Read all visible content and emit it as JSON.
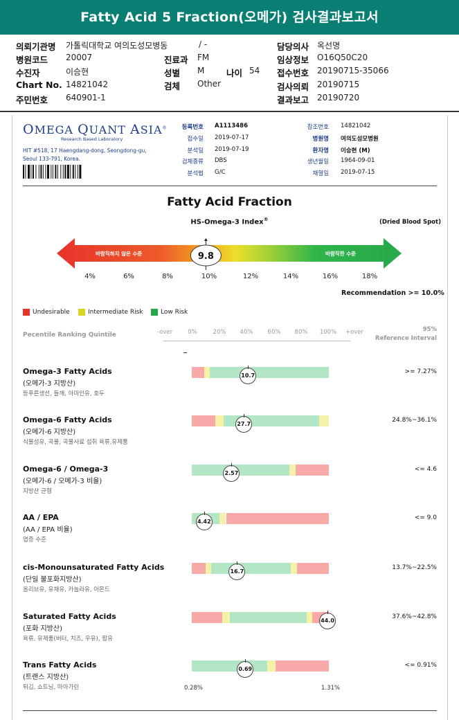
{
  "title": "Fatty Acid 5 Fraction(오메가) 검사결과보고서",
  "header": {
    "institution_label": "의뢰기관명",
    "institution": "가톨릭대학교 여의도성모병동",
    "dept_label_blank": "/ -",
    "doctor_label": "담당의사",
    "doctor": "옥선명",
    "hospital_code_label": "병원코드",
    "hospital_code": "20007",
    "dept_label": "진료과",
    "dept": "FM",
    "clinical_label": "임상정보",
    "clinical": "O16Q50C20",
    "patient_label": "수진자",
    "patient": "이승현",
    "sex_label": "성별",
    "sex": "M",
    "age_label": "나이",
    "age": "54",
    "receipt_label": "접수번호",
    "receipt": "20190715-35066",
    "chart_label": "Chart No.",
    "chart": "14821042",
    "specimen_label": "검체",
    "specimen": "Other",
    "request_date_label": "검사의뢰",
    "request_date": "20190715",
    "id_label": "주민번호",
    "id": "640901-1",
    "report_date_label": "결과보고",
    "report_date": "20190720"
  },
  "lab": {
    "logo_word1_cap": "O",
    "logo_word1": "MEGA",
    "logo_word2_cap": "Q",
    "logo_word2": "UANT",
    "logo_word3_cap": "A",
    "logo_word3": "SIA",
    "logo_mark": "®",
    "sublabel": "Research Based Laboratory",
    "address": "HIT #518, 17 Haengdang-dong, Seongdong-gu, Seoul 133-791, Korea."
  },
  "meta": {
    "reg_no_label": "등록번호",
    "reg_no": "A1113486",
    "received_label": "접수일",
    "received": "2019-07-17",
    "analyzed_label": "분석일",
    "analyzed": "2019-07-19",
    "specimen_type_label": "검체종류",
    "specimen_type": "DBS",
    "method_label": "분석법",
    "method": "G/C",
    "ref_no_label": "참조번호",
    "ref_no": "14821042",
    "hospital_label": "병원명",
    "hospital": "여의도성모병원",
    "patient_label": "환자명",
    "patient": "이승현 (M)",
    "dob_label": "생년월일",
    "dob": "1964-09-01",
    "collected_label": "채혈일",
    "collected": "2019-07-15"
  },
  "index": {
    "section_title": "Fatty Acid Fraction",
    "name": "HS-Omega-3 Index",
    "name_mark": "®",
    "sample_type": "(Dried Blood Spot)",
    "undesirable_label": "바람직하지 않은 수준",
    "desirable_label": "바람직한 수준",
    "value": 9.8,
    "value_text": "9.8",
    "scale_ticks": [
      "4%",
      "6%",
      "8%",
      "10%",
      "12%",
      "14%",
      "16%",
      "18%"
    ],
    "recommendation": "Recommendation  >= 10.0%"
  },
  "legend": [
    {
      "label": "Undesirable",
      "color": "#e8332b"
    },
    {
      "label": "Intermediate Risk",
      "color": "#d9d51e"
    },
    {
      "label": "Low Risk",
      "color": "#27a84a"
    }
  ],
  "ranking": {
    "title": "Pecentile Ranking Quintile",
    "ticks": [
      "-over",
      "0%",
      "20%",
      "40%",
      "60%",
      "80%",
      "100%",
      "+over"
    ],
    "ref_title_line1": "95%",
    "ref_title_line2": "Reference Interval"
  },
  "rows": [
    {
      "title": "Omega-3 Fatty Acids",
      "sub": "(오메가-3 지방산)",
      "desc": "등푸른생선, 들깨, 아마인유, 호두",
      "ref": ">= 7.27%",
      "value_text": "10.7",
      "marker_pos": 0.41,
      "segments": [
        [
          "r",
          0,
          0.09
        ],
        [
          "y",
          0.09,
          0.13
        ],
        [
          "g",
          0.13,
          1.0
        ]
      ]
    },
    {
      "title": "Omega-6 Fatty Acids",
      "sub": "(오메가-6 지방산)",
      "desc": "식물성유, 곡물, 곡물사료 섭취 육류,유제품",
      "ref": "24.8%~36.1%",
      "value_text": "27.7",
      "marker_pos": 0.38,
      "segments": [
        [
          "r",
          0,
          0.17
        ],
        [
          "y",
          0.17,
          0.23
        ],
        [
          "g",
          0.23,
          0.93
        ],
        [
          "y",
          0.93,
          1.0
        ]
      ]
    },
    {
      "title": "Omega-6 / Omega-3",
      "sub": "(오메가-6 / 오메가-3 비율)",
      "desc": "지방산 균형",
      "ref": "<= 4.6",
      "value_text": "2.57",
      "marker_pos": 0.29,
      "segments": [
        [
          "g",
          0,
          0.71
        ],
        [
          "y",
          0.71,
          0.76
        ],
        [
          "r",
          0.76,
          1.0
        ]
      ]
    },
    {
      "title": "AA / EPA",
      "sub": "(AA / EPA 비율)",
      "desc": "염증 수준",
      "ref": "<= 9.0",
      "value_text": "4.42",
      "marker_pos": 0.09,
      "segments": [
        [
          "g",
          0,
          0.2
        ],
        [
          "y",
          0.2,
          0.25
        ],
        [
          "r",
          0.25,
          1.0
        ]
      ]
    },
    {
      "title": "cis-Monounsaturated Fatty Acids",
      "sub": "(단일 불포화지방산)",
      "desc": "올리브유, 유채유, 카놀라유, 아몬드",
      "ref": "13.7%~22.5%",
      "value_text": "16.7",
      "marker_pos": 0.33,
      "segments": [
        [
          "r",
          0,
          0.1
        ],
        [
          "y",
          0.1,
          0.14
        ],
        [
          "g",
          0.14,
          0.72
        ],
        [
          "y",
          0.72,
          0.77
        ],
        [
          "r",
          0.77,
          1.0
        ]
      ]
    },
    {
      "title": "Saturated Fatty Acids",
      "sub": "(포화 지방산)",
      "desc": "육류, 유제품(버터, 치즈, 우유), 팜유",
      "ref": "37.6%~42.8%",
      "value_text": "44.0",
      "marker_pos": 0.99,
      "segments": [
        [
          "r",
          0,
          0.22
        ],
        [
          "y",
          0.22,
          0.28
        ],
        [
          "g",
          0.28,
          0.84
        ],
        [
          "y",
          0.84,
          0.88
        ],
        [
          "r",
          0.88,
          1.0
        ]
      ]
    },
    {
      "title": "Trans Fatty Acids",
      "sub": "(트랜스 지방산)",
      "desc": "튀김, 쇼트닝, 마아가린",
      "ref": "<= 0.91%",
      "value_text": "0.69",
      "marker_pos": 0.39,
      "segments": [
        [
          "g",
          0,
          0.55
        ],
        [
          "y",
          0.55,
          0.61
        ],
        [
          "r",
          0.61,
          1.0
        ]
      ],
      "min_label": "0.28%",
      "max_label": "1.31%"
    }
  ]
}
